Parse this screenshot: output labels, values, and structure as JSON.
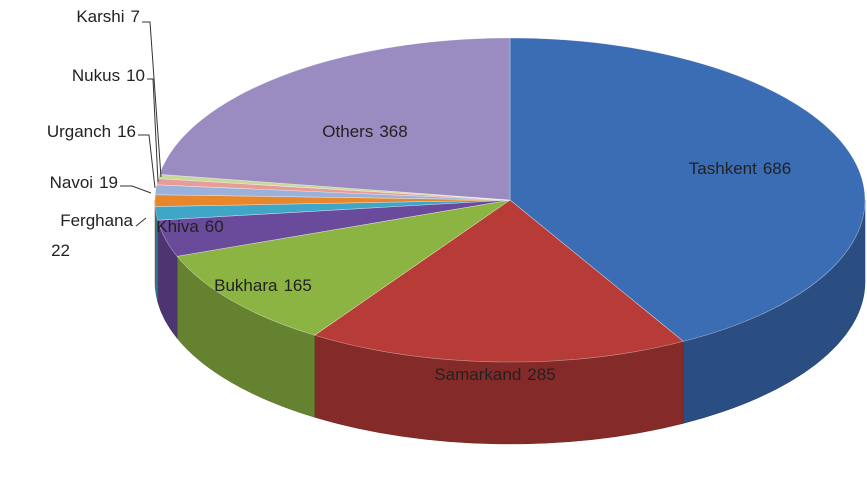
{
  "chart_data": {
    "type": "pie",
    "categories": [
      "Tashkent",
      "Samarkand",
      "Bukhara",
      "Khiva",
      "Ferghana",
      "Navoi",
      "Urganch",
      "Nukus",
      "Karshi",
      "Others"
    ],
    "values": [
      686,
      285,
      165,
      60,
      22,
      19,
      16,
      10,
      7,
      368
    ],
    "colors": [
      "#3b6db4",
      "#b73b37",
      "#8cb443",
      "#6a4a9b",
      "#3fa6c8",
      "#e8862b",
      "#9ab1d9",
      "#e89c9a",
      "#c9d99b",
      "#9a8bc1"
    ]
  }
}
